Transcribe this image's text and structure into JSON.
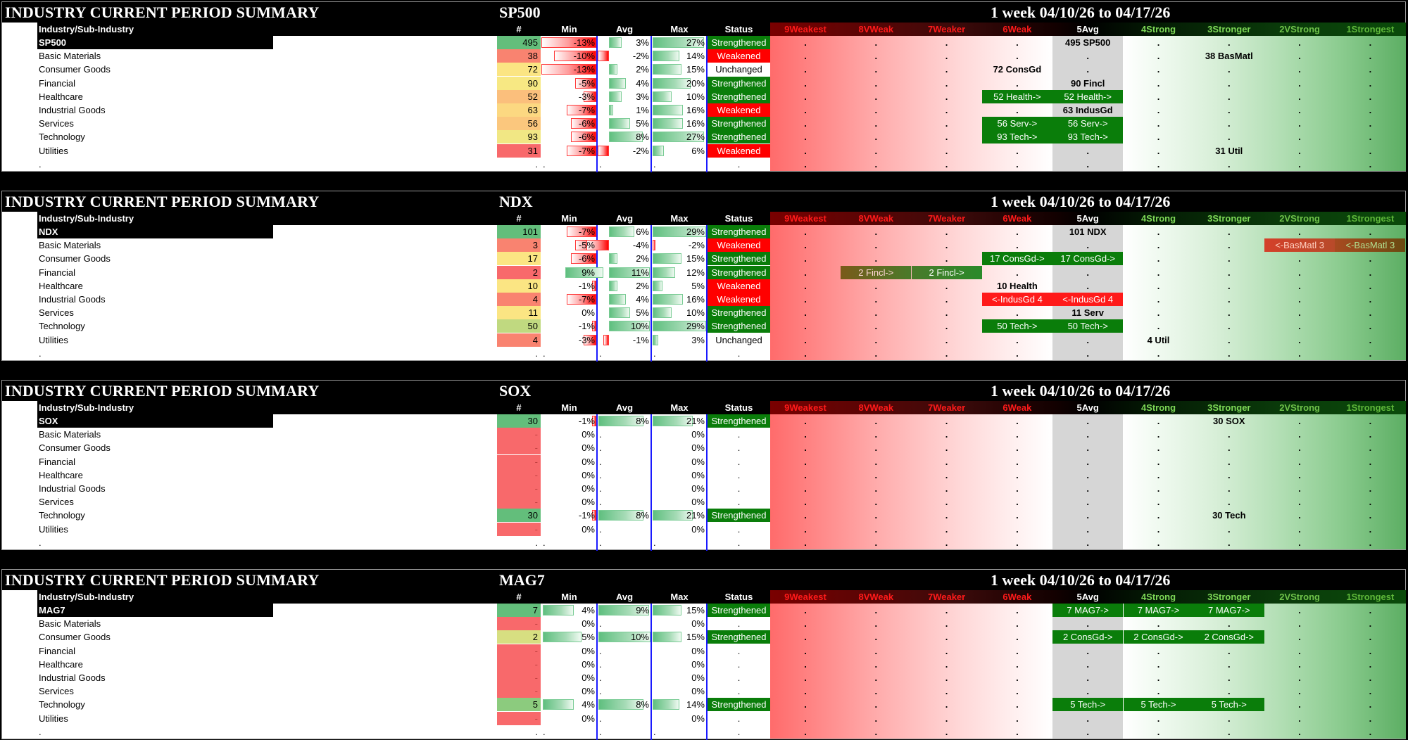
{
  "title": "INDUSTRY CURRENT PERIOD SUMMARY",
  "period": "1 week 04/10/26 to 04/17/26",
  "header": {
    "label": "Industry/Sub-Industry",
    "count": "#",
    "min": "Min",
    "avg": "Avg",
    "max": "Max",
    "status": "Status",
    "grades": [
      "9Weakest",
      "8VWeak",
      "7Weaker",
      "6Weak",
      "5Avg",
      "4Strong",
      "3Stronger",
      "2VStrong",
      "1Strongest"
    ]
  },
  "grade_colors": [
    "#ff1a1a",
    "#ff1a1a",
    "#ff1a1a",
    "#ff1a1a",
    "#ffffff",
    "#7ed957",
    "#7ed957",
    "#6fc24a",
    "#5fb83a"
  ],
  "status_colors": {
    "Strengthened": "#0a7d0a",
    "Weakened": "#ff0000",
    "Unchanged": "#ffffff"
  },
  "sections": [
    {
      "index": "SP500",
      "rows": [
        {
          "label": "SP500",
          "count": "495",
          "count_color": "#63be7b",
          "min": "-13%",
          "min_v": -13,
          "avg": "3%",
          "avg_v": 3,
          "max": "27%",
          "max_v": 27,
          "status": "Strengthened",
          "grades": {
            "5": "495 SP500"
          }
        },
        {
          "label": "Basic Materials",
          "count": "38",
          "count_color": "#f98370",
          "min": "-10%",
          "min_v": -10,
          "avg": "-2%",
          "avg_v": -2,
          "max": "14%",
          "max_v": 14,
          "status": "Weakened",
          "grades": {
            "3": "38 BasMatl"
          }
        },
        {
          "label": "Consumer Goods",
          "count": "72",
          "count_color": "#fbe583",
          "min": "-13%",
          "min_v": -13,
          "avg": "2%",
          "avg_v": 2,
          "max": "15%",
          "max_v": 15,
          "status": "Unchanged",
          "grades": {
            "6": "72 ConsGd"
          }
        },
        {
          "label": "Financial",
          "count": "90",
          "count_color": "#f7e883",
          "min": "-5%",
          "min_v": -5,
          "avg": "4%",
          "avg_v": 4,
          "max": "20%",
          "max_v": 20,
          "status": "Strengthened",
          "grades": {
            "5": "90 Fincl"
          }
        },
        {
          "label": "Healthcare",
          "count": "52",
          "count_color": "#fbbf7c",
          "min": "-3%",
          "min_v": -3,
          "avg": "3%",
          "avg_v": 3,
          "max": "10%",
          "max_v": 10,
          "status": "Strengthened",
          "grades": {
            "6": "52 Health->",
            "5": "52 Health->"
          },
          "moves": {
            "6": "green",
            "5": "green"
          }
        },
        {
          "label": "Industrial Goods",
          "count": "63",
          "count_color": "#fcd881",
          "min": "-7%",
          "min_v": -7,
          "avg": "1%",
          "avg_v": 1,
          "max": "16%",
          "max_v": 16,
          "status": "Weakened",
          "grades": {
            "5": "63 IndusGd"
          }
        },
        {
          "label": "Services",
          "count": "56",
          "count_color": "#fbc77d",
          "min": "-6%",
          "min_v": -6,
          "avg": "5%",
          "avg_v": 5,
          "max": "16%",
          "max_v": 16,
          "status": "Strengthened",
          "grades": {
            "6": "56 Serv->",
            "5": "56 Serv->"
          },
          "moves": {
            "6": "green",
            "5": "green"
          }
        },
        {
          "label": "Technology",
          "count": "93",
          "count_color": "#f1e784",
          "min": "-6%",
          "min_v": -6,
          "avg": "8%",
          "avg_v": 8,
          "max": "27%",
          "max_v": 27,
          "status": "Strengthened",
          "grades": {
            "6": "93 Tech->",
            "5": "93 Tech->"
          },
          "moves": {
            "6": "green",
            "5": "green"
          }
        },
        {
          "label": "Utilities",
          "count": "31",
          "count_color": "#f8696b",
          "min": "-7%",
          "min_v": -7,
          "avg": "-2%",
          "avg_v": -2,
          "max": "6%",
          "max_v": 6,
          "status": "Weakened",
          "grades": {
            "3": "31 Util"
          }
        },
        {
          "label": ".",
          "count": ".",
          "min": ".",
          "avg": ".",
          "max": ".",
          "status": ".",
          "grades": {},
          "blank": true
        }
      ]
    },
    {
      "index": "NDX",
      "rows": [
        {
          "label": "NDX",
          "count": "101",
          "count_color": "#63be7b",
          "min": "-7%",
          "min_v": -7,
          "avg": "6%",
          "avg_v": 6,
          "max": "29%",
          "max_v": 29,
          "status": "Strengthened",
          "grades": {
            "5": "101 NDX"
          }
        },
        {
          "label": "Basic Materials",
          "count": "3",
          "count_color": "#f98370",
          "min": "-5%",
          "min_v": -5,
          "avg": "-4%",
          "avg_v": -4,
          "max": "-2%",
          "max_v": -2,
          "status": "Weakened",
          "grades": {
            "2": "<-BasMatl 3",
            "1": "<-BasMatl 3"
          },
          "moves": {
            "2": "brick",
            "1": "brick2"
          }
        },
        {
          "label": "Consumer Goods",
          "count": "17",
          "count_color": "#fbe583",
          "min": "-6%",
          "min_v": -6,
          "avg": "2%",
          "avg_v": 2,
          "max": "15%",
          "max_v": 15,
          "status": "Strengthened",
          "grades": {
            "6": "17 ConsGd->",
            "5": "17 ConsGd->"
          },
          "moves": {
            "6": "green",
            "5": "green"
          }
        },
        {
          "label": "Financial",
          "count": "2",
          "count_color": "#f8696b",
          "min": "9%",
          "min_v": 9,
          "avg": "11%",
          "avg_v": 11,
          "max": "12%",
          "max_v": 12,
          "status": "Strengthened",
          "grades": {
            "8": "2 Fincl->",
            "7": "2 Fincl->"
          },
          "moves": {
            "8": "olive",
            "7": "olive2"
          }
        },
        {
          "label": "Healthcare",
          "count": "10",
          "count_color": "#fbe583",
          "min": "-1%",
          "min_v": -1,
          "avg": "2%",
          "avg_v": 2,
          "max": "5%",
          "max_v": 5,
          "status": "Weakened",
          "grades": {
            "6": "10 Health"
          }
        },
        {
          "label": "Industrial Goods",
          "count": "4",
          "count_color": "#f98370",
          "min": "-7%",
          "min_v": -7,
          "avg": "4%",
          "avg_v": 4,
          "max": "16%",
          "max_v": 16,
          "status": "Weakened",
          "grades": {
            "6": "<-IndusGd 4",
            "5": "<-IndusGd 4"
          },
          "moves": {
            "6": "red",
            "5": "red"
          }
        },
        {
          "label": "Services",
          "count": "11",
          "count_color": "#fbe583",
          "min": "0%",
          "min_v": 0,
          "avg": "5%",
          "avg_v": 5,
          "max": "10%",
          "max_v": 10,
          "status": "Strengthened",
          "grades": {
            "5": "11 Serv"
          }
        },
        {
          "label": "Technology",
          "count": "50",
          "count_color": "#c0d980",
          "min": "-1%",
          "min_v": -1,
          "avg": "10%",
          "avg_v": 10,
          "max": "29%",
          "max_v": 29,
          "status": "Strengthened",
          "grades": {
            "6": "50 Tech->",
            "5": "50 Tech->"
          },
          "moves": {
            "6": "green",
            "5": "green"
          }
        },
        {
          "label": "Utilities",
          "count": "4",
          "count_color": "#f98370",
          "min": "-3%",
          "min_v": -3,
          "avg": "-1%",
          "avg_v": -1,
          "max": "3%",
          "max_v": 3,
          "status": "Unchanged",
          "grades": {
            "4": "4 Util"
          }
        },
        {
          "label": ".",
          "count": ".",
          "min": ".",
          "avg": ".",
          "max": ".",
          "status": ".",
          "grades": {},
          "blank": true
        }
      ]
    },
    {
      "index": "SOX",
      "rows": [
        {
          "label": "SOX",
          "count": "30",
          "count_color": "#63be7b",
          "min": "-1%",
          "min_v": -1,
          "avg": "8%",
          "avg_v": 8,
          "max": "21%",
          "max_v": 21,
          "status": "Strengthened",
          "grades": {
            "3": "30 SOX"
          },
          "fullbars": true
        },
        {
          "label": "Basic Materials",
          "count": "-",
          "count_color": "#f8696b",
          "min": "0%",
          "min_v": 0,
          "avg": ".",
          "max": "0%",
          "max_v": 0,
          "status": "."
        },
        {
          "label": "Consumer Goods",
          "count": "-",
          "count_color": "#f8696b",
          "min": "0%",
          "min_v": 0,
          "avg": ".",
          "max": "0%",
          "max_v": 0,
          "status": "."
        },
        {
          "label": "Financial",
          "count": "-",
          "count_color": "#f8696b",
          "min": "0%",
          "min_v": 0,
          "avg": ".",
          "max": "0%",
          "max_v": 0,
          "status": "."
        },
        {
          "label": "Healthcare",
          "count": "-",
          "count_color": "#f8696b",
          "min": "0%",
          "min_v": 0,
          "avg": ".",
          "max": "0%",
          "max_v": 0,
          "status": "."
        },
        {
          "label": "Industrial Goods",
          "count": "-",
          "count_color": "#f8696b",
          "min": "0%",
          "min_v": 0,
          "avg": ".",
          "max": "0%",
          "max_v": 0,
          "status": "."
        },
        {
          "label": "Services",
          "count": "-",
          "count_color": "#f8696b",
          "min": "0%",
          "min_v": 0,
          "avg": ".",
          "max": "0%",
          "max_v": 0,
          "status": "."
        },
        {
          "label": "Technology",
          "count": "30",
          "count_color": "#63be7b",
          "min": "-1%",
          "min_v": -1,
          "avg": "8%",
          "avg_v": 8,
          "max": "21%",
          "max_v": 21,
          "status": "Strengthened",
          "grades": {
            "3": "30 Tech"
          },
          "fullbars": true
        },
        {
          "label": "Utilities",
          "count": "-",
          "count_color": "#f8696b",
          "min": "0%",
          "min_v": 0,
          "avg": ".",
          "max": "0%",
          "max_v": 0,
          "status": "."
        },
        {
          "label": ".",
          "count": ".",
          "min": ".",
          "avg": ".",
          "max": ".",
          "status": ".",
          "grades": {},
          "blank": true
        }
      ]
    },
    {
      "index": "MAG7",
      "rows": [
        {
          "label": "MAG7",
          "count": "7",
          "count_color": "#63be7b",
          "min": "4%",
          "min_v": 4,
          "avg": "9%",
          "avg_v": 9,
          "max": "15%",
          "max_v": 15,
          "status": "Strengthened",
          "grades": {
            "5": "7 MAG7->",
            "4": "7 MAG7->",
            "3": "7 MAG7->"
          },
          "moves": {
            "5": "green",
            "4": "green",
            "3": "green"
          },
          "fullbars": true
        },
        {
          "label": "Basic Materials",
          "count": "-",
          "count_color": "#f8696b",
          "min": "0%",
          "min_v": 0,
          "avg": ".",
          "max": "0%",
          "max_v": 0,
          "status": "."
        },
        {
          "label": "Consumer Goods",
          "count": "2",
          "count_color": "#d7df81",
          "min": "5%",
          "min_v": 5,
          "avg": "10%",
          "avg_v": 10,
          "max": "15%",
          "max_v": 15,
          "status": "Strengthened",
          "grades": {
            "5": "2 ConsGd->",
            "4": "2 ConsGd->",
            "3": "2 ConsGd->"
          },
          "moves": {
            "5": "green",
            "4": "green",
            "3": "green"
          },
          "fullbars": true
        },
        {
          "label": "Financial",
          "count": "-",
          "count_color": "#f8696b",
          "min": "0%",
          "min_v": 0,
          "avg": ".",
          "max": "0%",
          "max_v": 0,
          "status": "."
        },
        {
          "label": "Healthcare",
          "count": "-",
          "count_color": "#f8696b",
          "min": "0%",
          "min_v": 0,
          "avg": ".",
          "max": "0%",
          "max_v": 0,
          "status": "."
        },
        {
          "label": "Industrial Goods",
          "count": "-",
          "count_color": "#f8696b",
          "min": "0%",
          "min_v": 0,
          "avg": ".",
          "max": "0%",
          "max_v": 0,
          "status": "."
        },
        {
          "label": "Services",
          "count": "-",
          "count_color": "#f8696b",
          "min": "0%",
          "min_v": 0,
          "avg": ".",
          "max": "0%",
          "max_v": 0,
          "status": "."
        },
        {
          "label": "Technology",
          "count": "5",
          "count_color": "#8ccb7e",
          "min": "4%",
          "min_v": 4,
          "avg": "8%",
          "avg_v": 8,
          "max": "14%",
          "max_v": 14,
          "status": "Strengthened",
          "grades": {
            "5": "5 Tech->",
            "4": "5 Tech->",
            "3": "5 Tech->"
          },
          "moves": {
            "5": "green",
            "4": "green",
            "3": "green"
          },
          "fullbars": true
        },
        {
          "label": "Utilities",
          "count": "-",
          "count_color": "#f8696b",
          "min": "0%",
          "min_v": 0,
          "avg": ".",
          "max": "0%",
          "max_v": 0,
          "status": "."
        },
        {
          "label": ".",
          "count": ".",
          "min": ".",
          "avg": ".",
          "max": ".",
          "status": ".",
          "grades": {},
          "blank": true
        }
      ]
    }
  ]
}
